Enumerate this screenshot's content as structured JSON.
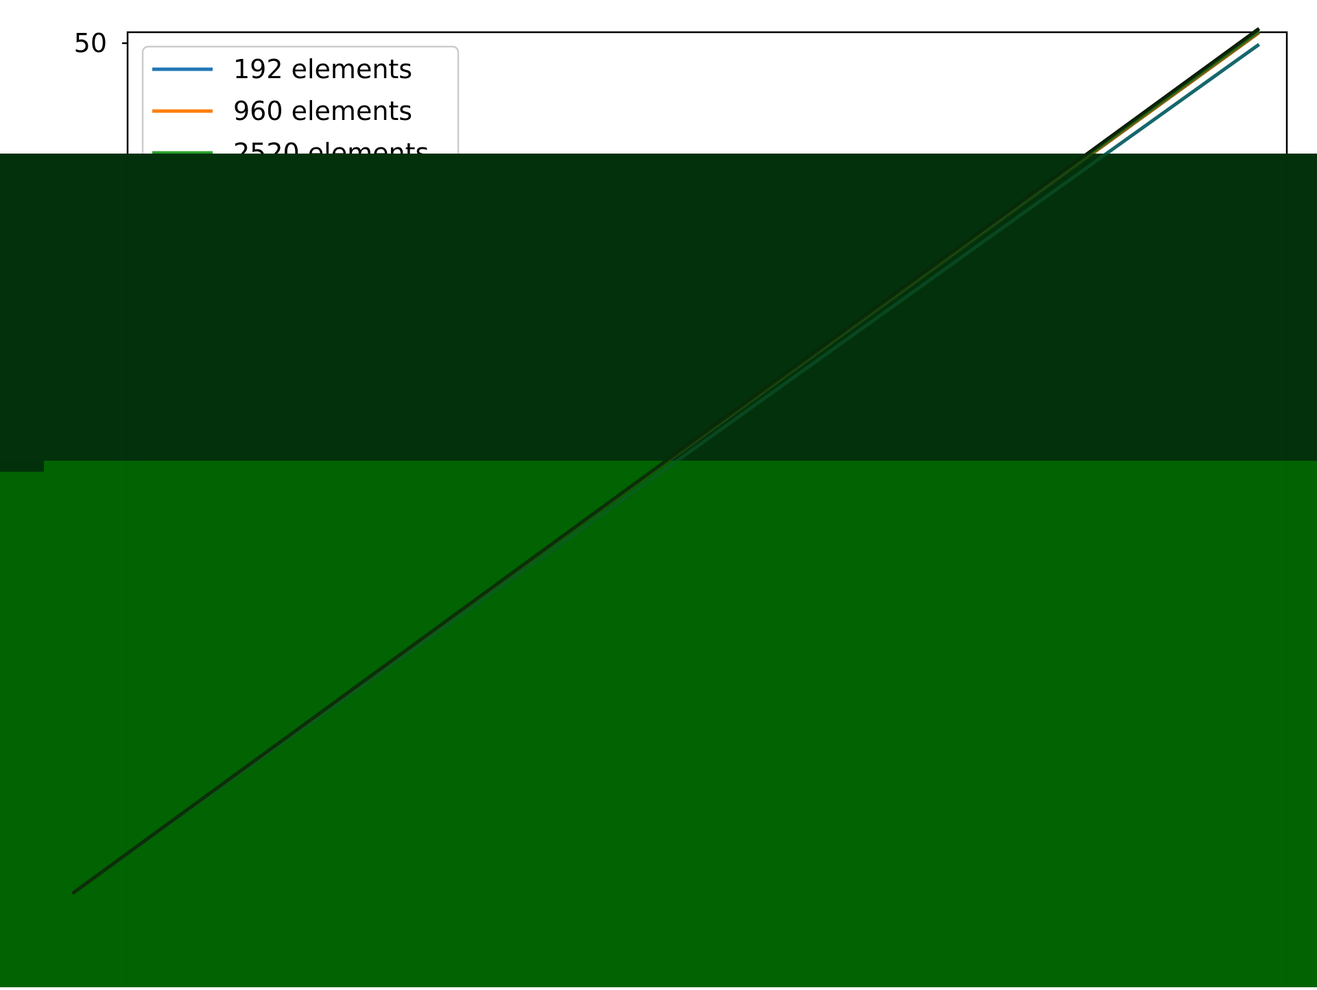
{
  "chart_data": {
    "type": "line",
    "title": "",
    "xlabel": "",
    "ylabel": "",
    "ylim": [
      null,
      50
    ],
    "y_ticks": [
      50
    ],
    "grid": false,
    "legend_position": "top-left",
    "series": [
      {
        "name": "192 elements",
        "color": "#1f77b4",
        "x_frac": [
          0.055,
          0.956
        ],
        "y_frac_from_top": [
          0.905,
          0.045
        ]
      },
      {
        "name": "960 elements",
        "color": "#ff7f0e",
        "x_frac": [
          0.055,
          0.956
        ],
        "y_frac_from_top": [
          0.905,
          0.033
        ]
      },
      {
        "name": "2520 elements",
        "color": "#2ca02c",
        "x_frac": [
          0.055,
          0.956
        ],
        "y_frac_from_top": [
          0.905,
          0.031
        ]
      },
      {
        "name": "",
        "color": "#d62728",
        "x_frac": [
          0.055,
          0.956
        ],
        "y_frac_from_top": [
          0.905,
          0.029
        ]
      },
      {
        "name": "",
        "color": "#000000",
        "x_frac": [
          0.055,
          0.956
        ],
        "y_frac_from_top": [
          0.905,
          0.029
        ]
      }
    ]
  },
  "overlays": {
    "top_band_color": "#02300b",
    "bottom_band_color": "#006200"
  }
}
